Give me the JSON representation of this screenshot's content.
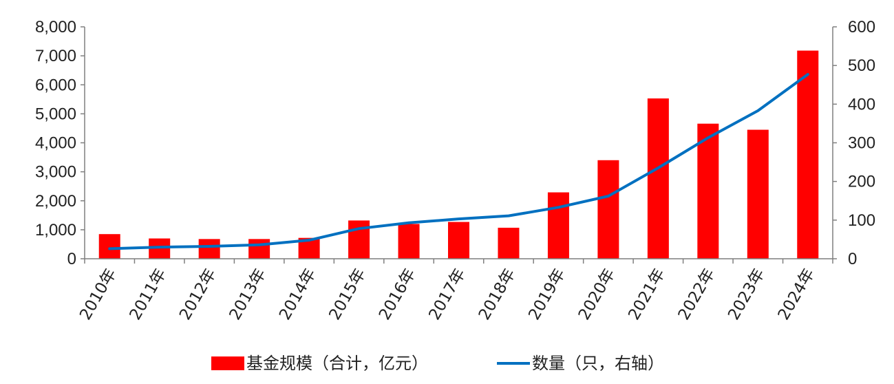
{
  "chart_data": {
    "type": "bar",
    "categories": [
      "2010年",
      "2011年",
      "2012年",
      "2013年",
      "2014年",
      "2015年",
      "2016年",
      "2017年",
      "2018年",
      "2019年",
      "2020年",
      "2021年",
      "2022年",
      "2023年",
      "2024年"
    ],
    "series": [
      {
        "name": "基金规模（合计，亿元）",
        "type": "bar",
        "axis": "left",
        "color": "#FF0000",
        "values": [
          850,
          700,
          680,
          680,
          720,
          1320,
          1200,
          1270,
          1070,
          2290,
          3400,
          5530,
          4660,
          4450,
          7180
        ]
      },
      {
        "name": "数量（只，右轴）",
        "type": "line",
        "axis": "right",
        "color": "#0070C0",
        "values": [
          26,
          30,
          32,
          36,
          48,
          78,
          93,
          103,
          111,
          133,
          162,
          235,
          313,
          383,
          477
        ]
      }
    ],
    "y_left": {
      "ylim": [
        0,
        8000
      ],
      "ticks": [
        "0",
        "1,000",
        "2,000",
        "3,000",
        "4,000",
        "5,000",
        "6,000",
        "7,000",
        "8,000"
      ]
    },
    "y_right": {
      "ylim": [
        0,
        600
      ],
      "ticks": [
        "0",
        "100",
        "200",
        "300",
        "400",
        "500",
        "600"
      ]
    },
    "grid": false,
    "legend": "bottom"
  }
}
